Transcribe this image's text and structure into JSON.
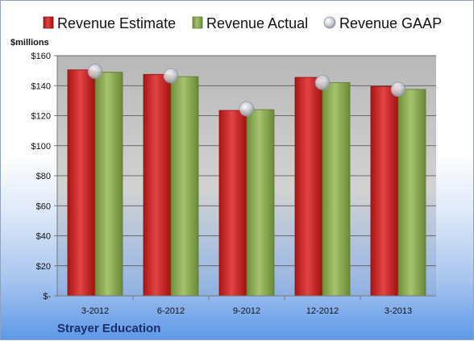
{
  "chart_data": {
    "type": "bar",
    "company": "Strayer Education",
    "ylabel": "$millions",
    "categories": [
      "3-2012",
      "6-2012",
      "9-2012",
      "12-2012",
      "3-2013"
    ],
    "series": [
      {
        "name": "Revenue Estimate",
        "kind": "bar",
        "color": "#d42a2a",
        "values": [
          150.5,
          147.5,
          123.5,
          145.5,
          139.5
        ]
      },
      {
        "name": "Revenue Actual",
        "kind": "bar",
        "color": "#8fae5a",
        "values": [
          149,
          146,
          124,
          142,
          137.5
        ]
      },
      {
        "name": "Revenue GAAP",
        "kind": "marker",
        "color": "#c8ccd4",
        "values": [
          149.5,
          146.5,
          124.5,
          142,
          137.5
        ]
      }
    ],
    "ylim": [
      0,
      160
    ],
    "yticks": [
      0,
      20,
      40,
      60,
      80,
      100,
      120,
      140,
      160
    ],
    "ytick_labels": [
      "$-",
      "$20",
      "$40",
      "$60",
      "$80",
      "$100",
      "$120",
      "$140",
      "$160"
    ],
    "grid": true,
    "legend_position": "top"
  }
}
